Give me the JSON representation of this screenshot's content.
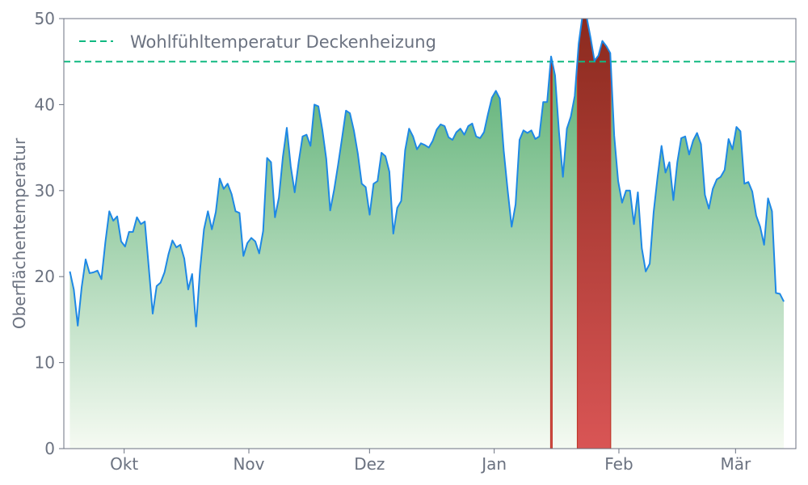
{
  "chart_data": {
    "type": "area",
    "title": "",
    "xlabel": "",
    "ylabel": "Oberflächentemperatur",
    "ylim": [
      0,
      50
    ],
    "yticks": [
      0,
      10,
      20,
      30,
      40,
      50
    ],
    "x_start": "2023-09-16",
    "x_end": "2024-03-16",
    "x_ticks": [
      {
        "date": "2023-10-01",
        "label": "Okt"
      },
      {
        "date": "2023-11-01",
        "label": "Nov"
      },
      {
        "date": "2023-12-01",
        "label": "Dez"
      },
      {
        "date": "2024-01-01",
        "label": "Jan"
      },
      {
        "date": "2024-02-01",
        "label": "Feb"
      },
      {
        "date": "2024-03-01",
        "label": "Mär"
      }
    ],
    "grid": false,
    "legend_position": "top-left",
    "threshold": {
      "name": "Wohlfühltemperatur Deckenheizung",
      "value": 45,
      "color": "#10b981"
    },
    "series": [
      {
        "line_color": "#1e88e5",
        "fill_gradient": [
          "#f5faf2",
          "#4ba866"
        ],
        "exceed_fill": [
          "#d95555",
          "#8b2a1e"
        ],
        "values": [
          20.6,
          18.5,
          14.3,
          18.8,
          22.0,
          20.4,
          20.5,
          20.7,
          19.7,
          24.0,
          27.6,
          26.5,
          27.0,
          24.1,
          23.5,
          25.2,
          25.2,
          26.9,
          26.1,
          26.4,
          21.1,
          15.7,
          18.9,
          19.3,
          20.5,
          22.6,
          24.2,
          23.4,
          23.7,
          22.1,
          18.5,
          20.3,
          14.2,
          20.8,
          25.5,
          27.6,
          25.5,
          27.5,
          31.4,
          30.2,
          30.8,
          29.6,
          27.6,
          27.4,
          22.4,
          23.9,
          24.5,
          24.1,
          22.7,
          25.3,
          33.8,
          33.3,
          26.9,
          29.2,
          33.9,
          37.3,
          32.8,
          29.8,
          33.3,
          36.3,
          36.5,
          35.2,
          40.0,
          39.8,
          37.1,
          33.7,
          27.7,
          30.1,
          33.0,
          36.1,
          39.3,
          39.0,
          37.0,
          34.3,
          30.8,
          30.4,
          27.2,
          30.8,
          31.1,
          34.4,
          34.0,
          32.2,
          25.0,
          28.0,
          28.8,
          34.7,
          37.2,
          36.3,
          34.8,
          35.5,
          35.3,
          35.0,
          35.8,
          37.1,
          37.7,
          37.5,
          36.2,
          35.9,
          36.8,
          37.2,
          36.5,
          37.5,
          37.8,
          36.3,
          36.1,
          36.8,
          38.9,
          40.8,
          41.6,
          40.7,
          34.6,
          30.0,
          25.8,
          28.4,
          35.9,
          37.0,
          36.7,
          37.0,
          36.0,
          36.3,
          40.3,
          40.3,
          45.6,
          43.4,
          36.8,
          31.6,
          37.2,
          38.6,
          41.0,
          47.1,
          50.5,
          50.2,
          47.8,
          45.1,
          45.7,
          47.4,
          46.8,
          46.0,
          36.4,
          31.1,
          28.6,
          30.0,
          30.0,
          26.1,
          29.8,
          23.3,
          20.6,
          21.5,
          27.5,
          31.6,
          35.2,
          32.1,
          33.3,
          28.9,
          33.3,
          36.1,
          36.3,
          34.2,
          35.8,
          36.7,
          35.4,
          29.5,
          27.9,
          30.2,
          31.3,
          31.6,
          32.4,
          36.0,
          34.8,
          37.4,
          36.9,
          30.8,
          31.0,
          29.9,
          27.1,
          25.8,
          23.7,
          29.1,
          27.6,
          18.1,
          18.0,
          17.1
        ]
      }
    ]
  }
}
